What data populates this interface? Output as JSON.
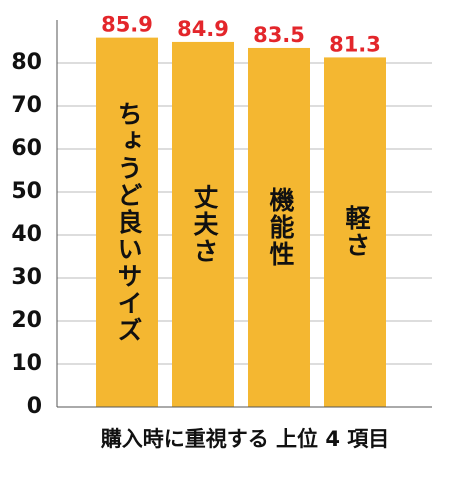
{
  "chart_data": {
    "type": "bar",
    "categories": [
      "ちょうど良いサイズ",
      "丈夫さ",
      "機能性",
      "軽さ"
    ],
    "values": [
      85.9,
      84.9,
      83.5,
      81.3
    ],
    "color": "#f4b731",
    "value_label_color": "#e3262b",
    "x_label": "購入時に重視する 上位 4 項目",
    "ylim": [
      0,
      90
    ],
    "yticks": [
      0,
      10,
      20,
      30,
      40,
      50,
      60,
      70,
      80
    ],
    "grid": true
  }
}
